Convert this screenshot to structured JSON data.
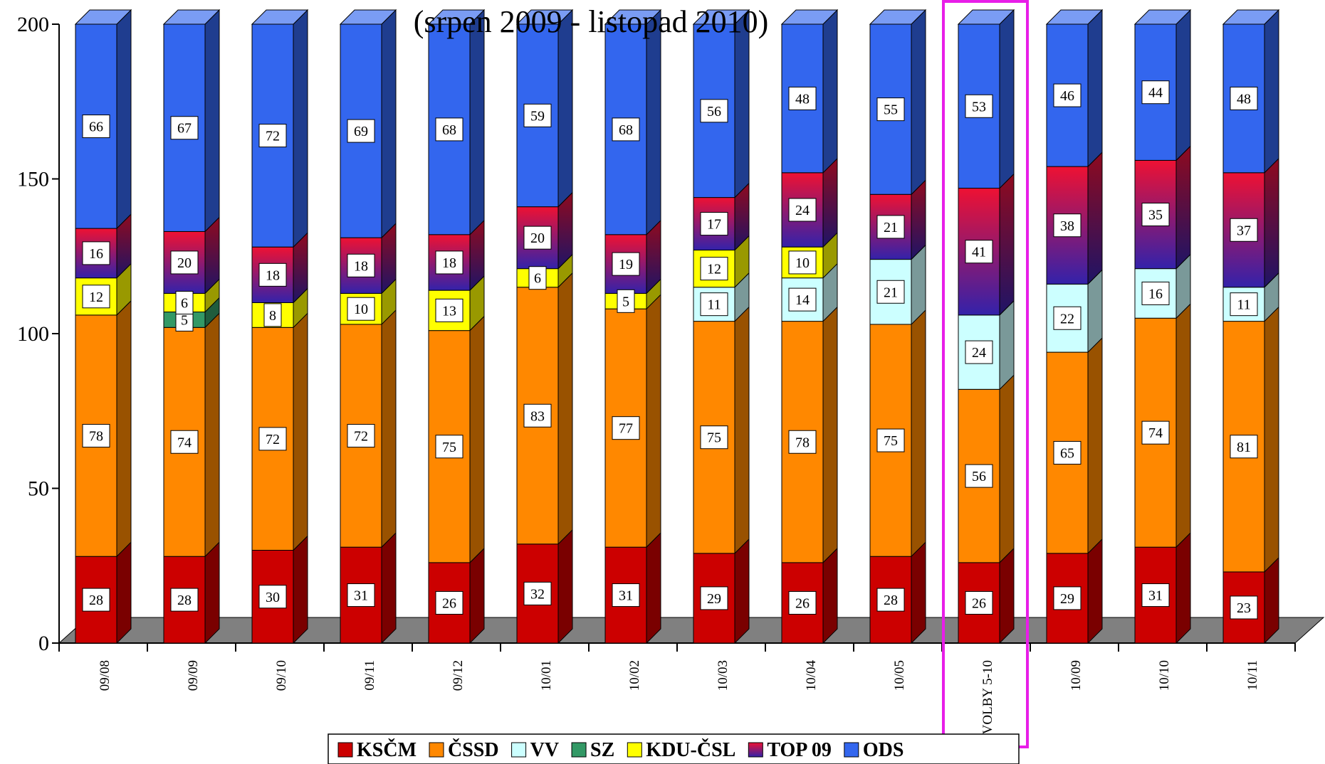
{
  "chart_data": {
    "type": "bar",
    "stacked": true,
    "three_d": true,
    "title": "(srpen 2009 - listopad 2010)",
    "xlabel": "",
    "ylabel": "",
    "ylim": [
      0,
      200
    ],
    "yticks": [
      0,
      50,
      100,
      150,
      200
    ],
    "grid": false,
    "legend": "bottom",
    "categories": [
      "09/08",
      "09/09",
      "09/10",
      "09/11",
      "09/12",
      "10/01",
      "10/02",
      "10/03",
      "10/04",
      "10/05",
      "VOLBY 5-10",
      "10/09",
      "10/10",
      "10/11"
    ],
    "highlight": {
      "category": "VOLBY 5-10",
      "color": "#e81ee8"
    },
    "series": [
      {
        "name": "KSČM",
        "color": "#cc0000",
        "values": [
          28,
          28,
          30,
          31,
          26,
          32,
          31,
          29,
          26,
          28,
          26,
          29,
          31,
          23
        ]
      },
      {
        "name": "ČSSD",
        "color": "#ff8800",
        "values": [
          78,
          74,
          72,
          72,
          75,
          83,
          77,
          75,
          78,
          75,
          56,
          65,
          74,
          81
        ]
      },
      {
        "name": "VV",
        "color": "#ccffff",
        "values": [
          null,
          null,
          null,
          null,
          null,
          null,
          null,
          11,
          14,
          21,
          24,
          22,
          16,
          11
        ]
      },
      {
        "name": "SZ",
        "color": "#339966",
        "values": [
          null,
          5,
          null,
          null,
          null,
          null,
          null,
          null,
          null,
          null,
          null,
          null,
          null,
          null
        ]
      },
      {
        "name": "KDU-ČSL",
        "color": "#ffff00",
        "values": [
          12,
          6,
          8,
          10,
          13,
          6,
          5,
          12,
          10,
          null,
          null,
          null,
          null,
          null
        ]
      },
      {
        "name": "TOP 09",
        "color": "#ee1133",
        "color2": "#3322aa",
        "values": [
          16,
          20,
          18,
          18,
          18,
          20,
          19,
          17,
          24,
          21,
          41,
          38,
          35,
          37
        ]
      },
      {
        "name": "ODS",
        "color": "#3366ee",
        "values": [
          66,
          67,
          72,
          69,
          68,
          59,
          68,
          56,
          48,
          55,
          53,
          46,
          44,
          48
        ]
      }
    ]
  }
}
